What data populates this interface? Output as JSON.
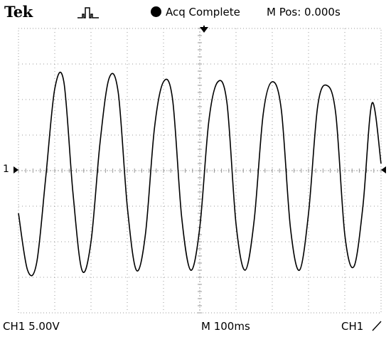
{
  "header": {
    "brand": "Tek",
    "trigger_icon": "pulse-trigger-icon",
    "status": "Acq Complete",
    "position": "M Pos: 0.000s"
  },
  "footer": {
    "channel_scale": "CH1  5.00V",
    "timebase": "M 100ms",
    "trigger_source": "CH1",
    "trigger_slope_icon": "rising-edge-icon"
  },
  "markers": {
    "channel_marker": "1",
    "channel_marker_icon": "right-arrow-icon",
    "trigger_position_icon": "down-arrow-icon",
    "trigger_level_icon": "left-arrow-icon"
  },
  "chart_data": {
    "type": "line",
    "xlabel": "",
    "ylabel": "",
    "grid": true,
    "x_divisions": 10,
    "y_divisions": 8,
    "xlim": [
      0,
      10
    ],
    "ylim": [
      -4,
      4
    ],
    "series": [
      {
        "x": [
          0.0,
          0.25,
          0.5,
          0.75,
          1.0,
          1.25,
          1.5,
          1.75,
          2.0,
          2.25,
          2.5,
          2.75,
          3.0,
          3.25,
          3.5,
          3.75,
          4.0,
          4.25,
          4.5,
          4.75,
          5.0,
          5.25,
          5.5,
          5.75,
          6.0,
          6.25,
          6.5,
          6.75,
          7.0,
          7.25,
          7.5,
          7.75,
          8.0,
          8.25,
          8.5,
          8.75,
          9.0,
          9.25,
          9.5,
          9.75,
          10.0
        ],
        "y": [
          -1.2,
          -2.8,
          -2.6,
          -0.2,
          2.3,
          2.5,
          -0.6,
          -2.8,
          -2.0,
          0.8,
          2.6,
          2.2,
          -1.0,
          -2.8,
          -1.8,
          1.2,
          2.5,
          2.0,
          -1.3,
          -2.8,
          -1.6,
          1.4,
          2.5,
          1.9,
          -1.5,
          -2.8,
          -1.4,
          1.6,
          2.5,
          1.7,
          -1.6,
          -2.8,
          -1.2,
          1.8,
          2.4,
          1.6,
          -1.8,
          -2.7,
          -1.0,
          1.9,
          0.2
        ]
      }
    ]
  }
}
